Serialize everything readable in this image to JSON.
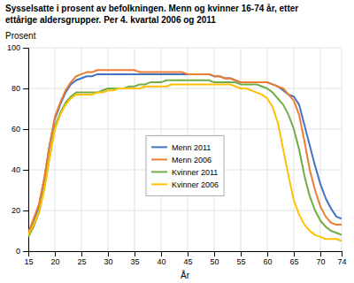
{
  "chart_data": {
    "type": "line",
    "title": "Sysselsatte i prosent av befolkningen. Menn og kvinner 16-74 år, etter",
    "subtitle": "ettårige aldersgrupper. Per 4. kvartal 2006 og 2011",
    "xlabel": "År",
    "ylabel": "Prosent",
    "x": [
      15,
      16,
      17,
      18,
      19,
      20,
      21,
      22,
      23,
      24,
      25,
      26,
      27,
      28,
      29,
      30,
      31,
      32,
      33,
      34,
      35,
      36,
      37,
      38,
      39,
      40,
      41,
      42,
      43,
      44,
      45,
      46,
      47,
      48,
      49,
      50,
      51,
      52,
      53,
      54,
      55,
      56,
      57,
      58,
      59,
      60,
      61,
      62,
      63,
      64,
      65,
      66,
      67,
      68,
      69,
      70,
      71,
      72,
      73,
      74
    ],
    "series": [
      {
        "name": "Menn 2011",
        "color": "#4472C4",
        "values": [
          9,
          15,
          22,
          35,
          52,
          65,
          72,
          78,
          82,
          84,
          85,
          86,
          86,
          87,
          87,
          87,
          87,
          87,
          87,
          87,
          87,
          87,
          87,
          87,
          87,
          87,
          87,
          87,
          87,
          87,
          87,
          87,
          87,
          87,
          87,
          86,
          86,
          85,
          85,
          84,
          83,
          83,
          83,
          83,
          83,
          83,
          82,
          81,
          79,
          77,
          76,
          72,
          62,
          52,
          42,
          33,
          26,
          21,
          17,
          16
        ]
      },
      {
        "name": "Menn 2006",
        "color": "#ED7D31",
        "values": [
          9,
          16,
          23,
          36,
          52,
          66,
          73,
          79,
          83,
          86,
          87,
          88,
          88,
          89,
          89,
          89,
          89,
          89,
          89,
          89,
          89,
          88,
          88,
          88,
          88,
          88,
          88,
          88,
          88,
          88,
          87,
          87,
          87,
          87,
          87,
          86,
          86,
          85,
          85,
          84,
          83,
          83,
          83,
          83,
          83,
          83,
          82,
          81,
          80,
          77,
          74,
          67,
          54,
          40,
          30,
          22,
          17,
          14,
          13,
          13
        ]
      },
      {
        "name": "Kvinner 2011",
        "color": "#70AD47",
        "values": [
          7,
          12,
          19,
          31,
          46,
          61,
          68,
          73,
          76,
          78,
          78,
          78,
          78,
          78,
          79,
          80,
          80,
          80,
          80,
          81,
          81,
          82,
          82,
          83,
          83,
          83,
          84,
          84,
          84,
          84,
          84,
          84,
          84,
          84,
          84,
          83,
          83,
          83,
          83,
          83,
          82,
          82,
          82,
          82,
          81,
          80,
          78,
          75,
          72,
          67,
          60,
          50,
          37,
          27,
          20,
          15,
          12,
          10,
          9,
          8
        ]
      },
      {
        "name": "Kvinner 2006",
        "color": "#FFC000",
        "values": [
          8,
          13,
          19,
          30,
          46,
          60,
          67,
          72,
          75,
          77,
          77,
          77,
          77,
          78,
          78,
          79,
          79,
          80,
          80,
          80,
          80,
          80,
          81,
          81,
          81,
          81,
          81,
          82,
          82,
          82,
          82,
          82,
          82,
          82,
          82,
          82,
          82,
          82,
          82,
          81,
          80,
          80,
          79,
          78,
          77,
          75,
          71,
          63,
          50,
          37,
          25,
          18,
          13,
          10,
          8,
          7,
          6,
          6,
          6,
          5
        ]
      }
    ],
    "xlim": [
      15,
      74
    ],
    "ylim": [
      0,
      100
    ],
    "xticks": [
      15,
      20,
      25,
      30,
      35,
      40,
      45,
      50,
      55,
      60,
      65,
      70,
      74
    ],
    "yticks": [
      0,
      20,
      40,
      60,
      80,
      100
    ],
    "grid": true,
    "legend": "center"
  }
}
